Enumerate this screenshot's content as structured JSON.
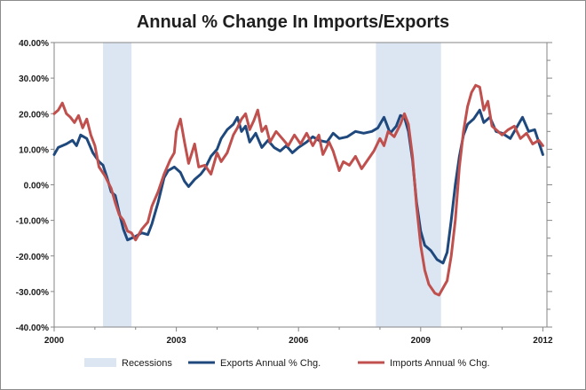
{
  "chart_data": {
    "type": "line",
    "title": "Annual % Change In Imports/Exports",
    "xlabel": "",
    "ylabel": "",
    "x_range": [
      2000,
      2012.1
    ],
    "ylim": [
      -40,
      40
    ],
    "y_ticks": [
      {
        "value": 40,
        "label": "40.00%"
      },
      {
        "value": 30,
        "label": "30.00%"
      },
      {
        "value": 20,
        "label": "20.00%"
      },
      {
        "value": 10,
        "label": "10.00%"
      },
      {
        "value": 0,
        "label": "0.00%"
      },
      {
        "value": -10,
        "label": "-10.00%"
      },
      {
        "value": -20,
        "label": "-20.00%"
      },
      {
        "value": -30,
        "label": "-30.00%"
      },
      {
        "value": -40,
        "label": "-40.00%"
      }
    ],
    "x_ticks": [
      {
        "value": 2000,
        "label": "2000"
      },
      {
        "value": 2003,
        "label": "2003"
      },
      {
        "value": 2006,
        "label": "2006"
      },
      {
        "value": 2009,
        "label": "2009"
      },
      {
        "value": 2012,
        "label": "2012"
      }
    ],
    "grid": false,
    "legend_position": "bottom",
    "recessions": {
      "name": "Recessions",
      "color": "#dce6f2",
      "periods": [
        [
          2001.2,
          2001.9
        ],
        [
          2007.9,
          2009.5
        ]
      ]
    },
    "series": [
      {
        "name": "Exports Annual % Chg.",
        "color": "#1f497d",
        "points": [
          [
            2000.0,
            8.5
          ],
          [
            2000.1,
            10.5
          ],
          [
            2000.3,
            11.5
          ],
          [
            2000.45,
            12.5
          ],
          [
            2000.55,
            11.0
          ],
          [
            2000.65,
            14.0
          ],
          [
            2000.8,
            13.0
          ],
          [
            2000.95,
            9.0
          ],
          [
            2001.1,
            6.5
          ],
          [
            2001.2,
            5.5
          ],
          [
            2001.3,
            2.0
          ],
          [
            2001.4,
            -2.0
          ],
          [
            2001.5,
            -3.0
          ],
          [
            2001.6,
            -8.0
          ],
          [
            2001.7,
            -12.5
          ],
          [
            2001.8,
            -15.5
          ],
          [
            2001.9,
            -15.0
          ],
          [
            2002.0,
            -14.5
          ],
          [
            2002.15,
            -13.5
          ],
          [
            2002.3,
            -14.0
          ],
          [
            2002.4,
            -11.0
          ],
          [
            2002.55,
            -5.0
          ],
          [
            2002.7,
            2.0
          ],
          [
            2002.8,
            4.0
          ],
          [
            2002.95,
            5.0
          ],
          [
            2003.1,
            3.5
          ],
          [
            2003.2,
            1.0
          ],
          [
            2003.3,
            -0.5
          ],
          [
            2003.45,
            1.5
          ],
          [
            2003.6,
            3.0
          ],
          [
            2003.7,
            4.5
          ],
          [
            2003.85,
            8.0
          ],
          [
            2004.0,
            10.0
          ],
          [
            2004.1,
            13.0
          ],
          [
            2004.25,
            15.5
          ],
          [
            2004.4,
            17.0
          ],
          [
            2004.5,
            19.0
          ],
          [
            2004.6,
            15.0
          ],
          [
            2004.7,
            16.5
          ],
          [
            2004.8,
            12.0
          ],
          [
            2004.95,
            14.5
          ],
          [
            2005.1,
            10.5
          ],
          [
            2005.25,
            12.5
          ],
          [
            2005.4,
            10.5
          ],
          [
            2005.55,
            9.5
          ],
          [
            2005.7,
            11.0
          ],
          [
            2005.85,
            9.0
          ],
          [
            2006.0,
            10.5
          ],
          [
            2006.2,
            12.0
          ],
          [
            2006.35,
            13.5
          ],
          [
            2006.5,
            12.5
          ],
          [
            2006.7,
            12.0
          ],
          [
            2006.85,
            14.5
          ],
          [
            2007.0,
            13.0
          ],
          [
            2007.2,
            13.5
          ],
          [
            2007.4,
            15.0
          ],
          [
            2007.6,
            14.5
          ],
          [
            2007.8,
            15.0
          ],
          [
            2007.95,
            16.0
          ],
          [
            2008.1,
            19.0
          ],
          [
            2008.25,
            14.5
          ],
          [
            2008.4,
            16.5
          ],
          [
            2008.5,
            19.5
          ],
          [
            2008.6,
            19.0
          ],
          [
            2008.7,
            15.0
          ],
          [
            2008.8,
            7.0
          ],
          [
            2008.9,
            -5.0
          ],
          [
            2009.0,
            -13.0
          ],
          [
            2009.1,
            -17.0
          ],
          [
            2009.25,
            -18.5
          ],
          [
            2009.4,
            -21.0
          ],
          [
            2009.55,
            -22.0
          ],
          [
            2009.65,
            -19.0
          ],
          [
            2009.75,
            -10.0
          ],
          [
            2009.85,
            0.0
          ],
          [
            2009.95,
            8.0
          ],
          [
            2010.05,
            14.0
          ],
          [
            2010.15,
            17.0
          ],
          [
            2010.3,
            18.5
          ],
          [
            2010.45,
            21.0
          ],
          [
            2010.55,
            17.5
          ],
          [
            2010.7,
            19.0
          ],
          [
            2010.85,
            15.0
          ],
          [
            2011.0,
            14.5
          ],
          [
            2011.2,
            13.0
          ],
          [
            2011.35,
            16.0
          ],
          [
            2011.5,
            19.0
          ],
          [
            2011.65,
            15.0
          ],
          [
            2011.8,
            15.5
          ],
          [
            2011.9,
            12.0
          ],
          [
            2012.0,
            8.5
          ]
        ]
      },
      {
        "name": "Imports Annual % Chg.",
        "color": "#c0504d",
        "points": [
          [
            2000.0,
            20.0
          ],
          [
            2000.1,
            21.0
          ],
          [
            2000.2,
            23.0
          ],
          [
            2000.3,
            20.0
          ],
          [
            2000.4,
            19.0
          ],
          [
            2000.5,
            17.5
          ],
          [
            2000.6,
            19.5
          ],
          [
            2000.7,
            16.0
          ],
          [
            2000.8,
            18.5
          ],
          [
            2000.9,
            14.0
          ],
          [
            2001.0,
            11.0
          ],
          [
            2001.1,
            5.0
          ],
          [
            2001.25,
            2.5
          ],
          [
            2001.4,
            -1.0
          ],
          [
            2001.5,
            -5.0
          ],
          [
            2001.6,
            -8.5
          ],
          [
            2001.7,
            -10.0
          ],
          [
            2001.8,
            -13.0
          ],
          [
            2001.9,
            -13.5
          ],
          [
            2002.0,
            -15.5
          ],
          [
            2002.15,
            -12.5
          ],
          [
            2002.3,
            -10.5
          ],
          [
            2002.4,
            -6.0
          ],
          [
            2002.55,
            -2.0
          ],
          [
            2002.7,
            3.0
          ],
          [
            2002.85,
            7.0
          ],
          [
            2002.95,
            9.0
          ],
          [
            2003.0,
            15.0
          ],
          [
            2003.1,
            18.5
          ],
          [
            2003.2,
            12.0
          ],
          [
            2003.3,
            6.0
          ],
          [
            2003.45,
            11.5
          ],
          [
            2003.55,
            5.0
          ],
          [
            2003.7,
            5.5
          ],
          [
            2003.85,
            3.0
          ],
          [
            2004.0,
            9.0
          ],
          [
            2004.1,
            6.5
          ],
          [
            2004.25,
            9.0
          ],
          [
            2004.4,
            14.0
          ],
          [
            2004.5,
            16.0
          ],
          [
            2004.6,
            18.5
          ],
          [
            2004.7,
            20.0
          ],
          [
            2004.8,
            15.5
          ],
          [
            2004.9,
            18.0
          ],
          [
            2005.0,
            21.0
          ],
          [
            2005.1,
            15.0
          ],
          [
            2005.2,
            16.5
          ],
          [
            2005.3,
            12.0
          ],
          [
            2005.45,
            15.0
          ],
          [
            2005.6,
            13.0
          ],
          [
            2005.75,
            11.0
          ],
          [
            2005.9,
            14.0
          ],
          [
            2006.05,
            11.5
          ],
          [
            2006.2,
            14.5
          ],
          [
            2006.35,
            11.0
          ],
          [
            2006.5,
            14.0
          ],
          [
            2006.6,
            8.5
          ],
          [
            2006.75,
            12.0
          ],
          [
            2006.85,
            9.5
          ],
          [
            2007.0,
            4.0
          ],
          [
            2007.1,
            6.5
          ],
          [
            2007.25,
            5.5
          ],
          [
            2007.4,
            8.0
          ],
          [
            2007.55,
            4.5
          ],
          [
            2007.7,
            7.0
          ],
          [
            2007.85,
            9.5
          ],
          [
            2008.0,
            13.0
          ],
          [
            2008.1,
            11.0
          ],
          [
            2008.2,
            15.0
          ],
          [
            2008.35,
            13.5
          ],
          [
            2008.5,
            17.0
          ],
          [
            2008.6,
            20.0
          ],
          [
            2008.7,
            17.0
          ],
          [
            2008.8,
            8.0
          ],
          [
            2008.9,
            -6.0
          ],
          [
            2009.0,
            -17.0
          ],
          [
            2009.1,
            -24.0
          ],
          [
            2009.2,
            -28.0
          ],
          [
            2009.35,
            -30.5
          ],
          [
            2009.45,
            -31.0
          ],
          [
            2009.55,
            -29.0
          ],
          [
            2009.65,
            -27.0
          ],
          [
            2009.75,
            -20.0
          ],
          [
            2009.85,
            -10.0
          ],
          [
            2009.95,
            5.0
          ],
          [
            2010.05,
            15.0
          ],
          [
            2010.15,
            22.0
          ],
          [
            2010.25,
            26.0
          ],
          [
            2010.35,
            28.0
          ],
          [
            2010.45,
            27.5
          ],
          [
            2010.55,
            21.0
          ],
          [
            2010.65,
            23.5
          ],
          [
            2010.75,
            16.5
          ],
          [
            2010.85,
            15.5
          ],
          [
            2011.0,
            14.0
          ],
          [
            2011.15,
            15.5
          ],
          [
            2011.3,
            16.5
          ],
          [
            2011.45,
            13.0
          ],
          [
            2011.6,
            14.5
          ],
          [
            2011.75,
            11.5
          ],
          [
            2011.9,
            12.5
          ],
          [
            2012.0,
            11.0
          ]
        ]
      }
    ]
  }
}
